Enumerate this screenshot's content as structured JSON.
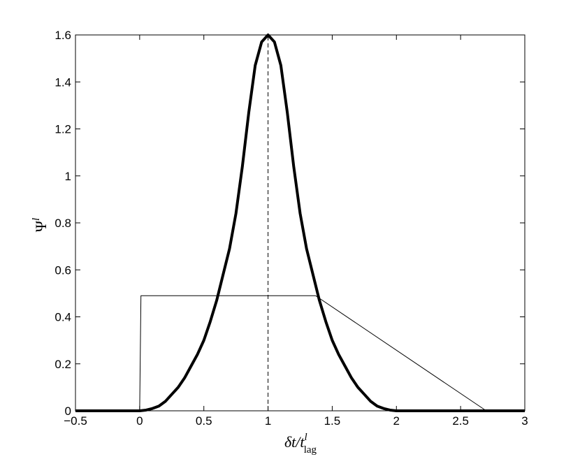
{
  "chart_data": {
    "type": "line",
    "xlabel": {
      "base": "δt/t",
      "sup": "l",
      "sub": "lag"
    },
    "ylabel": {
      "base": "Ψ",
      "sup": "l"
    },
    "xlim": [
      -0.5,
      3
    ],
    "ylim": [
      0,
      1.6
    ],
    "xticks": [
      {
        "value": -0.5,
        "label": "−0.5"
      },
      0,
      0.5,
      1,
      1.5,
      2,
      2.5,
      3
    ],
    "yticks": [
      0,
      0.2,
      0.4,
      0.6,
      0.8,
      1,
      1.2,
      1.4,
      1.6
    ],
    "vline_x": 1,
    "series": [
      {
        "color": "#000000",
        "line_width": 4,
        "x": [
          -0.5,
          0,
          0.05,
          0.1,
          0.15,
          0.2,
          0.25,
          0.3,
          0.35,
          0.4,
          0.45,
          0.5,
          0.55,
          0.6,
          0.65,
          0.7,
          0.75,
          0.8,
          0.85,
          0.9,
          0.95,
          1,
          1.05,
          1.1,
          1.15,
          1.2,
          1.25,
          1.3,
          1.35,
          1.4,
          1.45,
          1.5,
          1.55,
          1.6,
          1.65,
          1.7,
          1.75,
          1.8,
          1.85,
          1.9,
          1.95,
          2,
          3
        ],
        "values": [
          0,
          0,
          0.003,
          0.01,
          0.02,
          0.04,
          0.07,
          0.1,
          0.14,
          0.19,
          0.24,
          0.3,
          0.38,
          0.47,
          0.58,
          0.69,
          0.84,
          1.04,
          1.27,
          1.47,
          1.57,
          1.6,
          1.57,
          1.47,
          1.27,
          1.04,
          0.84,
          0.69,
          0.58,
          0.47,
          0.38,
          0.3,
          0.24,
          0.19,
          0.14,
          0.1,
          0.07,
          0.04,
          0.02,
          0.01,
          0.003,
          0,
          0
        ]
      },
      {
        "color": "#000000",
        "line_width": 1,
        "x": [
          -0.5,
          0,
          0.01,
          1.37,
          2.7,
          3
        ],
        "values": [
          0,
          0,
          0.49,
          0.49,
          0,
          0
        ]
      }
    ]
  }
}
